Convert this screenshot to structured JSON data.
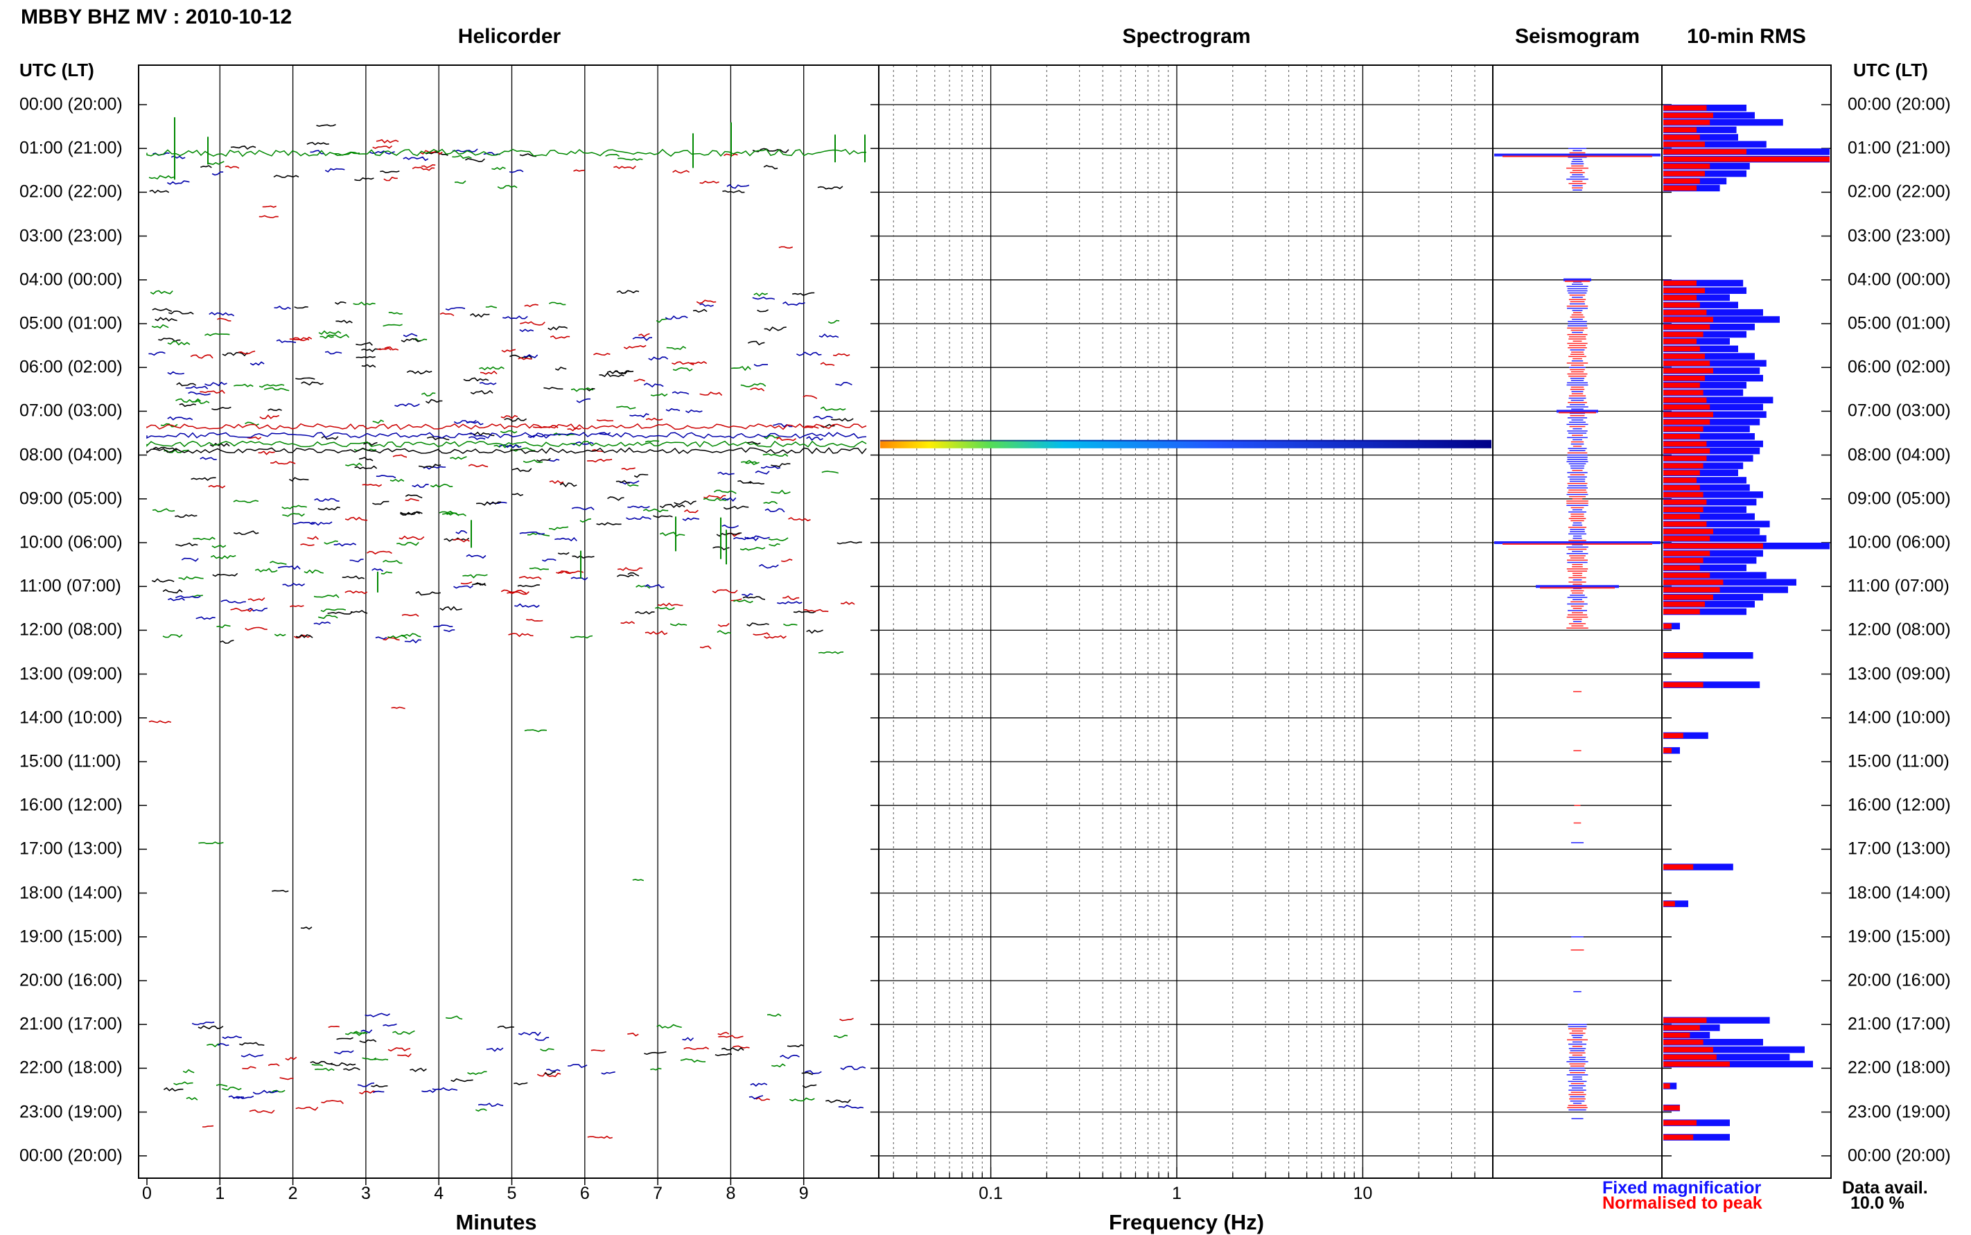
{
  "title": "MBBY BHZ MV : 2010-10-12",
  "panels": {
    "helicorder": "Helicorder",
    "spectrogram": "Spectrogram",
    "seismogram": "Seismogram",
    "rms": "10-min RMS"
  },
  "axis_header_left": "UTC (LT)",
  "axis_header_right": "UTC (LT)",
  "time_labels": [
    "00:00 (20:00)",
    "01:00 (21:00)",
    "02:00 (22:00)",
    "03:00 (23:00)",
    "04:00 (00:00)",
    "05:00 (01:00)",
    "06:00 (02:00)",
    "07:00 (03:00)",
    "08:00 (04:00)",
    "09:00 (05:00)",
    "10:00 (06:00)",
    "11:00 (07:00)",
    "12:00 (08:00)",
    "13:00 (09:00)",
    "14:00 (10:00)",
    "15:00 (11:00)",
    "16:00 (12:00)",
    "17:00 (13:00)",
    "18:00 (14:00)",
    "19:00 (15:00)",
    "20:00 (16:00)",
    "21:00 (17:00)",
    "22:00 (18:00)",
    "23:00 (19:00)",
    "00:00 (20:00)"
  ],
  "helicorder_ticks": [
    "0",
    "1",
    "2",
    "3",
    "4",
    "5",
    "6",
    "7",
    "8",
    "9"
  ],
  "helicorder_xlabel": "Minutes",
  "spectrogram_ticks": [
    "0.1",
    "1",
    "10"
  ],
  "spectrogram_xlabel": "Frequency (Hz)",
  "legend": {
    "fixed": "Fixed magnificatior",
    "fixed_color": "#1010ff",
    "normalised": "Normalised to peak",
    "normalised_color": "#ff0000"
  },
  "data_avail": {
    "label": "Data avail.",
    "value": "10.0 %"
  },
  "chart_data": [
    {
      "type": "line",
      "panel": "helicorder",
      "x_unit": "minutes",
      "xlim": [
        0,
        10
      ],
      "y_unit": "hour UTC",
      "ylim": [
        0,
        24
      ],
      "trace_colors": [
        "#000000",
        "#cc0000",
        "#0000aa",
        "#008800"
      ],
      "active_hours": [
        1,
        4,
        5,
        6,
        7,
        8,
        9,
        10,
        11,
        21,
        22
      ]
    },
    {
      "type": "heatmap",
      "panel": "spectrogram",
      "x_unit": "Hz",
      "x_scale": "log",
      "xlim": [
        0.025,
        50
      ],
      "energy_band_hour": 7.75,
      "colormap": [
        "#ff8800",
        "#ffff00",
        "#33dd66",
        "#00bbee",
        "#2255ff",
        "#000088"
      ]
    },
    {
      "type": "bar",
      "panel": "10-min RMS",
      "series": [
        {
          "name": "Fixed magnificatior",
          "color": "#1010ff"
        },
        {
          "name": "Normalised to peak",
          "color": "#ff0000"
        }
      ],
      "rows": [
        {
          "hour": 0.0,
          "fixed": 0.5,
          "norm": 0.26
        },
        {
          "hour": 0.17,
          "fixed": 0.55,
          "norm": 0.3
        },
        {
          "hour": 0.33,
          "fixed": 0.72,
          "norm": 0.28
        },
        {
          "hour": 0.5,
          "fixed": 0.44,
          "norm": 0.2
        },
        {
          "hour": 0.67,
          "fixed": 0.45,
          "norm": 0.22
        },
        {
          "hour": 0.83,
          "fixed": 0.62,
          "norm": 0.25
        },
        {
          "hour": 1.0,
          "fixed": 1.0,
          "norm": 0.5
        },
        {
          "hour": 1.17,
          "fixed": 1.0,
          "norm": 1.0
        },
        {
          "hour": 1.33,
          "fixed": 0.52,
          "norm": 0.28
        },
        {
          "hour": 1.5,
          "fixed": 0.5,
          "norm": 0.25
        },
        {
          "hour": 1.67,
          "fixed": 0.38,
          "norm": 0.22
        },
        {
          "hour": 1.83,
          "fixed": 0.34,
          "norm": 0.2
        },
        {
          "hour": 4.0,
          "fixed": 0.48,
          "norm": 0.2
        },
        {
          "hour": 4.17,
          "fixed": 0.5,
          "norm": 0.25
        },
        {
          "hour": 4.33,
          "fixed": 0.4,
          "norm": 0.2
        },
        {
          "hour": 4.5,
          "fixed": 0.45,
          "norm": 0.22
        },
        {
          "hour": 4.67,
          "fixed": 0.6,
          "norm": 0.26
        },
        {
          "hour": 4.83,
          "fixed": 0.7,
          "norm": 0.3
        },
        {
          "hour": 5.0,
          "fixed": 0.55,
          "norm": 0.28
        },
        {
          "hour": 5.17,
          "fixed": 0.5,
          "norm": 0.24
        },
        {
          "hour": 5.33,
          "fixed": 0.4,
          "norm": 0.2
        },
        {
          "hour": 5.5,
          "fixed": 0.45,
          "norm": 0.22
        },
        {
          "hour": 5.67,
          "fixed": 0.55,
          "norm": 0.25
        },
        {
          "hour": 5.83,
          "fixed": 0.62,
          "norm": 0.28
        },
        {
          "hour": 6.0,
          "fixed": 0.58,
          "norm": 0.3
        },
        {
          "hour": 6.17,
          "fixed": 0.6,
          "norm": 0.25
        },
        {
          "hour": 6.33,
          "fixed": 0.5,
          "norm": 0.22
        },
        {
          "hour": 6.5,
          "fixed": 0.48,
          "norm": 0.24
        },
        {
          "hour": 6.67,
          "fixed": 0.66,
          "norm": 0.26
        },
        {
          "hour": 6.83,
          "fixed": 0.6,
          "norm": 0.28
        },
        {
          "hour": 7.0,
          "fixed": 0.62,
          "norm": 0.3
        },
        {
          "hour": 7.17,
          "fixed": 0.58,
          "norm": 0.28
        },
        {
          "hour": 7.33,
          "fixed": 0.52,
          "norm": 0.24
        },
        {
          "hour": 7.5,
          "fixed": 0.55,
          "norm": 0.22
        },
        {
          "hour": 7.67,
          "fixed": 0.6,
          "norm": 0.26
        },
        {
          "hour": 7.83,
          "fixed": 0.58,
          "norm": 0.28
        },
        {
          "hour": 8.0,
          "fixed": 0.54,
          "norm": 0.26
        },
        {
          "hour": 8.17,
          "fixed": 0.48,
          "norm": 0.24
        },
        {
          "hour": 8.33,
          "fixed": 0.45,
          "norm": 0.22
        },
        {
          "hour": 8.5,
          "fixed": 0.5,
          "norm": 0.2
        },
        {
          "hour": 8.67,
          "fixed": 0.52,
          "norm": 0.22
        },
        {
          "hour": 8.83,
          "fixed": 0.6,
          "norm": 0.24
        },
        {
          "hour": 9.0,
          "fixed": 0.56,
          "norm": 0.26
        },
        {
          "hour": 9.17,
          "fixed": 0.5,
          "norm": 0.24
        },
        {
          "hour": 9.33,
          "fixed": 0.55,
          "norm": 0.22
        },
        {
          "hour": 9.5,
          "fixed": 0.64,
          "norm": 0.26
        },
        {
          "hour": 9.67,
          "fixed": 0.58,
          "norm": 0.3
        },
        {
          "hour": 9.83,
          "fixed": 0.62,
          "norm": 0.28
        },
        {
          "hour": 10.0,
          "fixed": 1.0,
          "norm": 0.6
        },
        {
          "hour": 10.17,
          "fixed": 0.6,
          "norm": 0.28
        },
        {
          "hour": 10.33,
          "fixed": 0.56,
          "norm": 0.24
        },
        {
          "hour": 10.5,
          "fixed": 0.5,
          "norm": 0.22
        },
        {
          "hour": 10.67,
          "fixed": 0.62,
          "norm": 0.28
        },
        {
          "hour": 10.83,
          "fixed": 0.8,
          "norm": 0.36
        },
        {
          "hour": 11.0,
          "fixed": 0.75,
          "norm": 0.34
        },
        {
          "hour": 11.17,
          "fixed": 0.6,
          "norm": 0.3
        },
        {
          "hour": 11.33,
          "fixed": 0.55,
          "norm": 0.25
        },
        {
          "hour": 11.5,
          "fixed": 0.5,
          "norm": 0.22
        },
        {
          "hour": 11.83,
          "fixed": 0.1,
          "norm": 0.05
        },
        {
          "hour": 12.5,
          "fixed": 0.54,
          "norm": 0.24
        },
        {
          "hour": 13.17,
          "fixed": 0.58,
          "norm": 0.24
        },
        {
          "hour": 14.33,
          "fixed": 0.27,
          "norm": 0.12
        },
        {
          "hour": 14.67,
          "fixed": 0.1,
          "norm": 0.05
        },
        {
          "hour": 17.33,
          "fixed": 0.42,
          "norm": 0.18
        },
        {
          "hour": 18.17,
          "fixed": 0.15,
          "norm": 0.07
        },
        {
          "hour": 20.83,
          "fixed": 0.64,
          "norm": 0.26
        },
        {
          "hour": 21.0,
          "fixed": 0.34,
          "norm": 0.22
        },
        {
          "hour": 21.17,
          "fixed": 0.28,
          "norm": 0.16
        },
        {
          "hour": 21.33,
          "fixed": 0.6,
          "norm": 0.24
        },
        {
          "hour": 21.5,
          "fixed": 0.85,
          "norm": 0.3
        },
        {
          "hour": 21.67,
          "fixed": 0.76,
          "norm": 0.32
        },
        {
          "hour": 21.83,
          "fixed": 0.9,
          "norm": 0.4
        },
        {
          "hour": 22.33,
          "fixed": 0.08,
          "norm": 0.04
        },
        {
          "hour": 22.83,
          "fixed": 0.1,
          "norm": 0.1
        },
        {
          "hour": 23.17,
          "fixed": 0.4,
          "norm": 0.2
        },
        {
          "hour": 23.5,
          "fixed": 0.4,
          "norm": 0.18
        }
      ]
    }
  ]
}
